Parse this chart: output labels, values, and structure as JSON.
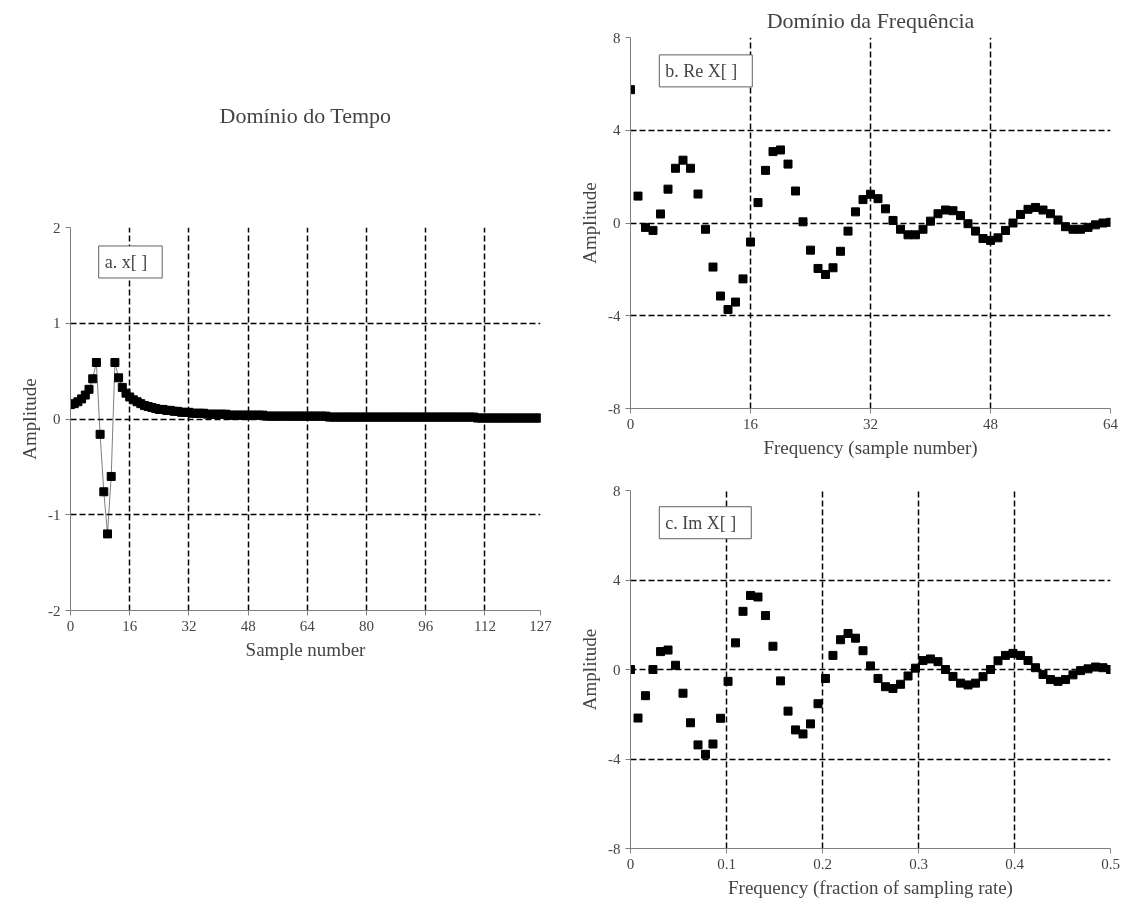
{
  "chart_data": [
    {
      "type": "line",
      "title": "Domínio do Tempo",
      "xlabel": "Sample number",
      "ylabel": "Amplitude",
      "annotations": [
        "a.  x[  ]"
      ],
      "marker": "square",
      "grid": true,
      "xlim": [
        0,
        127
      ],
      "xticks": [
        0,
        16,
        32,
        48,
        64,
        80,
        96,
        112,
        127
      ],
      "ylim": [
        -2,
        2
      ],
      "yticks": [
        -2,
        -1,
        0,
        1,
        2
      ],
      "x": [
        0,
        1,
        2,
        3,
        4,
        5,
        6,
        7,
        8,
        9,
        10,
        11,
        12,
        13,
        14,
        15,
        16,
        17,
        18,
        19,
        20,
        21,
        22,
        23,
        24,
        25,
        26,
        27,
        28,
        29,
        30,
        31,
        32,
        33,
        34,
        35,
        36,
        37,
        38,
        39,
        40,
        41,
        42,
        43,
        44,
        45,
        46,
        47,
        48,
        49,
        50,
        51,
        52,
        53,
        54,
        55,
        56,
        57,
        58,
        59,
        60,
        61,
        62,
        63,
        64,
        65,
        66,
        67,
        68,
        69,
        70,
        71,
        72,
        73,
        74,
        75,
        76,
        77,
        78,
        79,
        80,
        81,
        82,
        83,
        84,
        85,
        86,
        87,
        88,
        89,
        90,
        91,
        92,
        93,
        94,
        95,
        96,
        97,
        98,
        99,
        100,
        101,
        102,
        103,
        104,
        105,
        106,
        107,
        108,
        109,
        110,
        111,
        112,
        113,
        114,
        115,
        116,
        117,
        118,
        119,
        120,
        121,
        122,
        123,
        124,
        125,
        126,
        127
      ],
      "series": [
        {
          "color": "#000000",
          "values": [
            0.15,
            0.16,
            0.18,
            0.21,
            0.25,
            0.31,
            0.42,
            0.59,
            -0.16,
            -0.76,
            -1.2,
            -0.6,
            0.59,
            0.43,
            0.33,
            0.27,
            0.23,
            0.2,
            0.18,
            0.16,
            0.14,
            0.13,
            0.12,
            0.11,
            0.1,
            0.1,
            0.09,
            0.09,
            0.08,
            0.08,
            0.07,
            0.07,
            0.07,
            0.06,
            0.06,
            0.06,
            0.06,
            0.05,
            0.05,
            0.05,
            0.05,
            0.05,
            0.05,
            0.04,
            0.04,
            0.04,
            0.04,
            0.04,
            0.04,
            0.04,
            0.04,
            0.04,
            0.04,
            0.03,
            0.03,
            0.03,
            0.03,
            0.03,
            0.03,
            0.03,
            0.03,
            0.03,
            0.03,
            0.03,
            0.03,
            0.03,
            0.03,
            0.03,
            0.03,
            0.03,
            0.02,
            0.02,
            0.02,
            0.02,
            0.02,
            0.02,
            0.02,
            0.02,
            0.02,
            0.02,
            0.02,
            0.02,
            0.02,
            0.02,
            0.02,
            0.02,
            0.02,
            0.02,
            0.02,
            0.02,
            0.02,
            0.02,
            0.02,
            0.02,
            0.02,
            0.02,
            0.02,
            0.02,
            0.02,
            0.02,
            0.02,
            0.02,
            0.02,
            0.02,
            0.02,
            0.02,
            0.02,
            0.02,
            0.02,
            0.02,
            0.01,
            0.01,
            0.01,
            0.01,
            0.01,
            0.01,
            0.01,
            0.01,
            0.01,
            0.01,
            0.01,
            0.01,
            0.01,
            0.01,
            0.01,
            0.01,
            0.01,
            0.01
          ]
        }
      ]
    },
    {
      "type": "scatter",
      "title": "Domínio da Frequência",
      "xlabel": "Frequency (sample number)",
      "ylabel": "Amplitude",
      "annotations": [
        "b.  Re X[  ]"
      ],
      "marker": "square",
      "grid": true,
      "xlim": [
        0,
        64
      ],
      "xticks": [
        0,
        16,
        32,
        48,
        64
      ],
      "ylim": [
        -8,
        8
      ],
      "yticks": [
        -8,
        -4,
        0,
        4,
        8
      ],
      "x": [
        0,
        1,
        2,
        3,
        4,
        5,
        6,
        7,
        8,
        9,
        10,
        11,
        12,
        13,
        14,
        15,
        16,
        17,
        18,
        19,
        20,
        21,
        22,
        23,
        24,
        25,
        26,
        27,
        28,
        29,
        30,
        31,
        32,
        33,
        34,
        35,
        36,
        37,
        38,
        39,
        40,
        41,
        42,
        43,
        44,
        45,
        46,
        47,
        48,
        49,
        50,
        51,
        52,
        53,
        54,
        55,
        56,
        57,
        58,
        59,
        60,
        61,
        62,
        63,
        64
      ],
      "series": [
        {
          "color": "#000000",
          "values": [
            5.75,
            1.16,
            -0.19,
            -0.32,
            0.39,
            1.46,
            2.36,
            2.71,
            2.36,
            1.25,
            -0.27,
            -1.9,
            -3.15,
            -3.73,
            -3.41,
            -2.41,
            -0.82,
            0.88,
            2.27,
            3.08,
            3.15,
            2.54,
            1.38,
            0.05,
            -1.17,
            -1.96,
            -2.22,
            -1.93,
            -1.22,
            -0.35,
            0.48,
            1.01,
            1.24,
            1.05,
            0.61,
            0.11,
            -0.27,
            -0.51,
            -0.51,
            -0.27,
            0.08,
            0.4,
            0.56,
            0.53,
            0.32,
            -0.03,
            -0.35,
            -0.67,
            -0.75,
            -0.64,
            -0.32,
            0.0,
            0.37,
            0.59,
            0.67,
            0.56,
            0.4,
            0.13,
            -0.16,
            -0.27,
            -0.27,
            -0.19,
            -0.08,
            0.0,
            0.03
          ]
        }
      ]
    },
    {
      "type": "scatter",
      "xlabel": "Frequency (fraction of sampling rate)",
      "ylabel": "Amplitude",
      "annotations": [
        "c.  Im X[  ]"
      ],
      "marker": "square",
      "grid": true,
      "xlim": [
        0,
        0.5
      ],
      "xticks": [
        0,
        0.1,
        0.2,
        0.3,
        0.4,
        0.5
      ],
      "ylim": [
        -8,
        8
      ],
      "yticks": [
        -8,
        -4,
        0,
        4,
        8
      ],
      "x": [
        0,
        0.0078,
        0.0156,
        0.0234,
        0.0313,
        0.0391,
        0.0469,
        0.0547,
        0.0625,
        0.0703,
        0.0781,
        0.0859,
        0.0938,
        0.1016,
        0.1094,
        0.1172,
        0.125,
        0.1328,
        0.1406,
        0.1484,
        0.1563,
        0.1641,
        0.1719,
        0.1797,
        0.1875,
        0.1953,
        0.2031,
        0.2109,
        0.2188,
        0.2266,
        0.2344,
        0.2422,
        0.25,
        0.2578,
        0.2656,
        0.2734,
        0.2813,
        0.2891,
        0.2969,
        0.3047,
        0.3125,
        0.3203,
        0.3281,
        0.3359,
        0.3438,
        0.3516,
        0.3594,
        0.3672,
        0.375,
        0.3828,
        0.3906,
        0.3984,
        0.4063,
        0.4141,
        0.4219,
        0.4297,
        0.4375,
        0.4453,
        0.4531,
        0.4609,
        0.4688,
        0.4766,
        0.4844,
        0.4922,
        0.5
      ],
      "series": [
        {
          "color": "#000000",
          "values": [
            0.0,
            -2.17,
            -1.17,
            0.0,
            0.8,
            0.87,
            0.19,
            -1.06,
            -2.38,
            -3.37,
            -3.79,
            -3.33,
            -2.18,
            -0.53,
            1.19,
            2.6,
            3.31,
            3.24,
            2.41,
            1.04,
            -0.51,
            -1.86,
            -2.7,
            -2.88,
            -2.43,
            -1.53,
            -0.4,
            0.63,
            1.33,
            1.61,
            1.4,
            0.84,
            0.16,
            -0.4,
            -0.77,
            -0.85,
            -0.66,
            -0.29,
            0.06,
            0.4,
            0.47,
            0.35,
            0.0,
            -0.31,
            -0.61,
            -0.69,
            -0.61,
            -0.32,
            0.0,
            0.39,
            0.63,
            0.72,
            0.63,
            0.4,
            0.08,
            -0.22,
            -0.45,
            -0.53,
            -0.45,
            -0.24,
            -0.05,
            0.03,
            0.11,
            0.08,
            0.0
          ]
        }
      ]
    }
  ]
}
